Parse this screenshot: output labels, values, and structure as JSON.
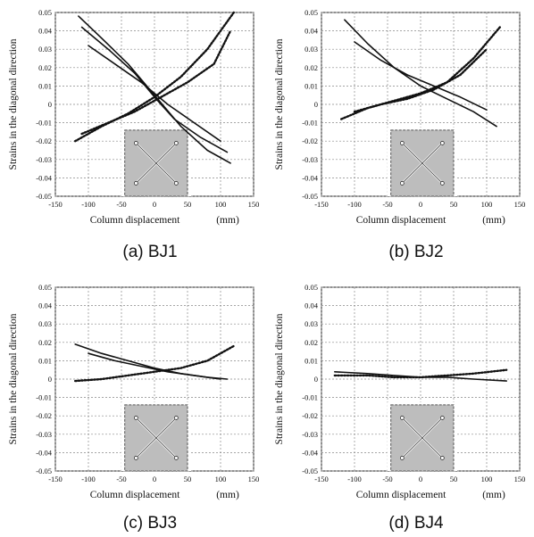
{
  "figure": {
    "captions": [
      "(a) BJ1",
      "(b) BJ2",
      "(c) BJ3",
      "(d) BJ4"
    ]
  },
  "chart_data": [
    {
      "type": "line",
      "panel": "(a) BJ1",
      "xlabel": "Column displacement",
      "xunit": "(mm)",
      "ylabel": "Strains in the diagonal direction",
      "xlim": [
        -150,
        150
      ],
      "ylim": [
        -0.05,
        0.05
      ],
      "xticks": [
        -150,
        -100,
        -50,
        0,
        50,
        100,
        150
      ],
      "yticks": [
        -0.05,
        -0.04,
        -0.03,
        -0.02,
        -0.01,
        0,
        0.01,
        0.02,
        0.03,
        0.04,
        0.05
      ],
      "grid": true,
      "series": [
        {
          "style": "solid",
          "x": [
            -115,
            -80,
            -40,
            0,
            40,
            80,
            115
          ],
          "y": [
            0.048,
            0.036,
            0.022,
            0.005,
            -0.012,
            -0.025,
            -0.032
          ]
        },
        {
          "style": "solid",
          "x": [
            -110,
            -70,
            -30,
            0,
            30,
            70,
            110
          ],
          "y": [
            0.042,
            0.03,
            0.017,
            0.004,
            -0.008,
            -0.018,
            -0.026
          ]
        },
        {
          "style": "solid",
          "x": [
            -100,
            -60,
            -20,
            20,
            60,
            100
          ],
          "y": [
            0.032,
            0.022,
            0.012,
            0.0,
            -0.01,
            -0.02
          ]
        },
        {
          "style": "dotted",
          "x": [
            -120,
            -80,
            -40,
            0,
            40,
            80,
            120
          ],
          "y": [
            -0.02,
            -0.012,
            -0.005,
            0.004,
            0.015,
            0.03,
            0.05
          ]
        },
        {
          "style": "dotted",
          "x": [
            -110,
            -70,
            -30,
            10,
            50,
            90,
            115
          ],
          "y": [
            -0.016,
            -0.01,
            -0.004,
            0.004,
            0.012,
            0.022,
            0.04
          ]
        }
      ]
    },
    {
      "type": "line",
      "panel": "(b) BJ2",
      "xlabel": "Column displacement",
      "xunit": "(mm)",
      "ylabel": "Strains in the diagonal direction",
      "xlim": [
        -150,
        150
      ],
      "ylim": [
        -0.05,
        0.05
      ],
      "xticks": [
        -150,
        -100,
        -50,
        0,
        50,
        100,
        150
      ],
      "yticks": [
        -0.05,
        -0.04,
        -0.03,
        -0.02,
        -0.01,
        0,
        0.01,
        0.02,
        0.03,
        0.04,
        0.05
      ],
      "grid": true,
      "series": [
        {
          "style": "solid",
          "x": [
            -115,
            -80,
            -40,
            0,
            40,
            80,
            115
          ],
          "y": [
            0.046,
            0.033,
            0.02,
            0.01,
            0.003,
            -0.004,
            -0.012
          ]
        },
        {
          "style": "solid",
          "x": [
            -100,
            -60,
            -20,
            20,
            60,
            100
          ],
          "y": [
            0.034,
            0.024,
            0.016,
            0.01,
            0.004,
            -0.003
          ]
        },
        {
          "style": "dotted",
          "x": [
            -120,
            -80,
            -40,
            0,
            40,
            80,
            120
          ],
          "y": [
            -0.008,
            -0.002,
            0.002,
            0.006,
            0.012,
            0.025,
            0.042
          ]
        },
        {
          "style": "dotted",
          "x": [
            -100,
            -60,
            -20,
            20,
            60,
            100
          ],
          "y": [
            -0.004,
            0.0,
            0.003,
            0.008,
            0.016,
            0.03
          ]
        }
      ]
    },
    {
      "type": "line",
      "panel": "(c) BJ3",
      "xlabel": "Column displacement",
      "xunit": "(mm)",
      "ylabel": "Strains in the diagonal direction",
      "xlim": [
        -150,
        150
      ],
      "ylim": [
        -0.05,
        0.05
      ],
      "xticks": [
        -150,
        -100,
        -50,
        0,
        50,
        100,
        150
      ],
      "yticks": [
        -0.05,
        -0.04,
        -0.03,
        -0.02,
        -0.01,
        0,
        0.01,
        0.02,
        0.03,
        0.04,
        0.05
      ],
      "grid": true,
      "series": [
        {
          "style": "solid",
          "x": [
            -120,
            -80,
            -40,
            0,
            40,
            80,
            110
          ],
          "y": [
            0.019,
            0.014,
            0.01,
            0.006,
            0.003,
            0.001,
            0.0
          ]
        },
        {
          "style": "solid",
          "x": [
            -100,
            -60,
            -20,
            20,
            60,
            100
          ],
          "y": [
            0.014,
            0.01,
            0.007,
            0.004,
            0.002,
            0.0
          ]
        },
        {
          "style": "dotted",
          "x": [
            -120,
            -80,
            -40,
            0,
            40,
            80,
            120
          ],
          "y": [
            -0.001,
            0.0,
            0.002,
            0.004,
            0.006,
            0.01,
            0.018
          ]
        }
      ]
    },
    {
      "type": "line",
      "panel": "(d) BJ4",
      "xlabel": "Column displacement",
      "xunit": "(mm)",
      "ylabel": "Strains in the diagonal direction",
      "xlim": [
        -150,
        150
      ],
      "ylim": [
        -0.05,
        0.05
      ],
      "xticks": [
        -150,
        -100,
        -50,
        0,
        50,
        100,
        150
      ],
      "yticks": [
        -0.05,
        -0.04,
        -0.03,
        -0.02,
        -0.01,
        0,
        0.01,
        0.02,
        0.03,
        0.04,
        0.05
      ],
      "grid": true,
      "series": [
        {
          "style": "solid",
          "x": [
            -130,
            -80,
            -40,
            0,
            40,
            80,
            130
          ],
          "y": [
            0.004,
            0.003,
            0.002,
            0.001,
            0.001,
            0.0,
            -0.001
          ]
        },
        {
          "style": "dotted",
          "x": [
            -130,
            -80,
            -40,
            0,
            40,
            80,
            130
          ],
          "y": [
            0.002,
            0.002,
            0.001,
            0.001,
            0.002,
            0.003,
            0.005
          ]
        }
      ]
    }
  ]
}
